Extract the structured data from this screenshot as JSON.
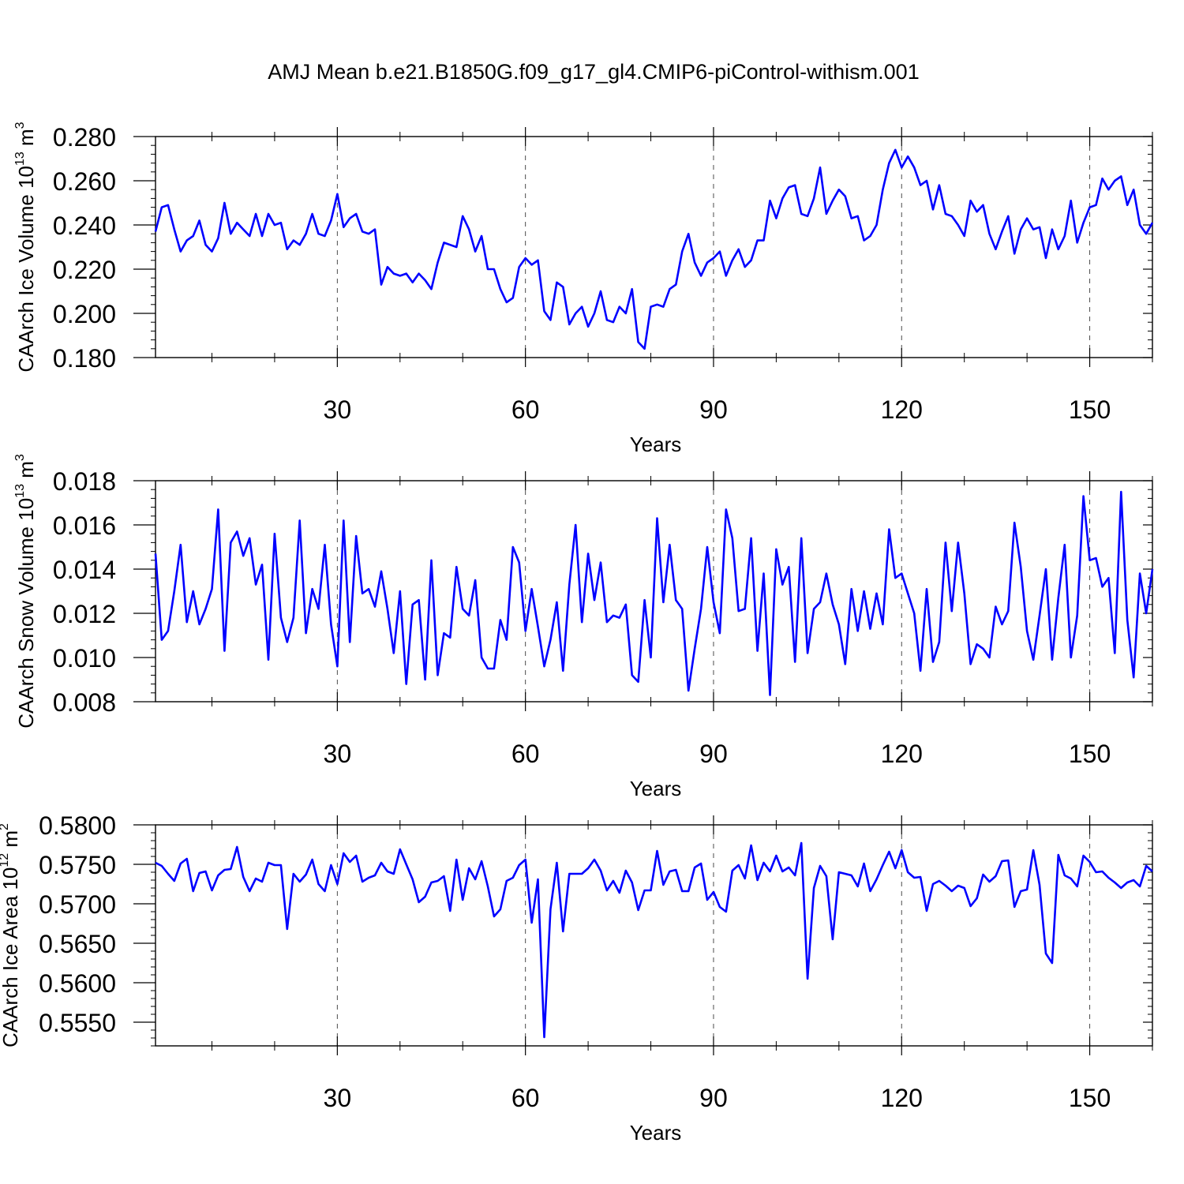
{
  "figure_title": "AMJ Mean b.e21.B1850G.f09_g17_gl4.CMIP6-piControl-withism.001",
  "colors": {
    "line": "#0000ff",
    "axes": "#000000",
    "grid": "#000000",
    "background": "#ffffff"
  },
  "chart_data": [
    {
      "type": "line",
      "name": "caarch-ice-volume",
      "title": "",
      "xlabel": "Years",
      "ylabel": {
        "text": "CAArch Ice Volume 10",
        "exponent": "13",
        "unit": " m",
        "unit_exponent": "3"
      },
      "xlim": [
        1,
        160
      ],
      "ylim": [
        0.18,
        0.28
      ],
      "xticks": [
        30,
        60,
        90,
        120,
        150
      ],
      "xtick_labels": [
        "30",
        "60",
        "90",
        "120",
        "150"
      ],
      "yticks": [
        0.18,
        0.2,
        0.22,
        0.24,
        0.26,
        0.28
      ],
      "ytick_labels": [
        "0.180",
        "0.200",
        "0.220",
        "0.240",
        "0.260",
        "0.280"
      ],
      "x_minor_step": 10,
      "y_minor_step": 0.004,
      "vertical_grid": [
        30,
        60,
        90,
        120,
        150
      ],
      "series": [
        {
          "name": "CAArch Ice Volume",
          "x_start": 1,
          "values": [
            0.237,
            0.248,
            0.249,
            0.238,
            0.228,
            0.233,
            0.235,
            0.242,
            0.231,
            0.228,
            0.234,
            0.25,
            0.236,
            0.241,
            0.238,
            0.235,
            0.245,
            0.235,
            0.245,
            0.24,
            0.241,
            0.229,
            0.233,
            0.231,
            0.236,
            0.245,
            0.236,
            0.235,
            0.242,
            0.254,
            0.239,
            0.243,
            0.245,
            0.237,
            0.236,
            0.238,
            0.213,
            0.221,
            0.218,
            0.217,
            0.218,
            0.214,
            0.218,
            0.215,
            0.211,
            0.223,
            0.232,
            0.231,
            0.23,
            0.244,
            0.238,
            0.228,
            0.235,
            0.22,
            0.22,
            0.211,
            0.205,
            0.207,
            0.221,
            0.225,
            0.222,
            0.224,
            0.201,
            0.197,
            0.214,
            0.212,
            0.195,
            0.2,
            0.203,
            0.194,
            0.2,
            0.21,
            0.197,
            0.196,
            0.203,
            0.2,
            0.211,
            0.187,
            0.184,
            0.203,
            0.204,
            0.203,
            0.211,
            0.213,
            0.228,
            0.236,
            0.223,
            0.217,
            0.223,
            0.225,
            0.228,
            0.217,
            0.224,
            0.229,
            0.221,
            0.224,
            0.233,
            0.233,
            0.251,
            0.243,
            0.252,
            0.257,
            0.258,
            0.245,
            0.244,
            0.252,
            0.266,
            0.245,
            0.251,
            0.256,
            0.253,
            0.243,
            0.244,
            0.233,
            0.235,
            0.24,
            0.256,
            0.268,
            0.274,
            0.266,
            0.271,
            0.266,
            0.258,
            0.26,
            0.247,
            0.258,
            0.245,
            0.244,
            0.24,
            0.235,
            0.251,
            0.246,
            0.249,
            0.236,
            0.229,
            0.237,
            0.244,
            0.227,
            0.238,
            0.243,
            0.238,
            0.239,
            0.225,
            0.238,
            0.229,
            0.235,
            0.251,
            0.232,
            0.241,
            0.248,
            0.249,
            0.261,
            0.256,
            0.26,
            0.262,
            0.249,
            0.256,
            0.24,
            0.236,
            0.241
          ]
        }
      ]
    },
    {
      "type": "line",
      "name": "caarch-snow-volume",
      "title": "",
      "xlabel": "Years",
      "ylabel": {
        "text": "CAArch Snow Volume 10",
        "exponent": "13",
        "unit": " m",
        "unit_exponent": "3"
      },
      "xlim": [
        1,
        160
      ],
      "ylim": [
        0.008,
        0.018
      ],
      "xticks": [
        30,
        60,
        90,
        120,
        150
      ],
      "xtick_labels": [
        "30",
        "60",
        "90",
        "120",
        "150"
      ],
      "yticks": [
        0.008,
        0.01,
        0.012,
        0.014,
        0.016,
        0.018
      ],
      "ytick_labels": [
        "0.008",
        "0.010",
        "0.012",
        "0.014",
        "0.016",
        "0.018"
      ],
      "x_minor_step": 10,
      "y_minor_step": 0.0004,
      "vertical_grid": [
        30,
        60,
        90,
        120,
        150
      ],
      "series": [
        {
          "name": "CAArch Snow Volume",
          "x_start": 1,
          "values": [
            0.0147,
            0.0108,
            0.0112,
            0.013,
            0.0151,
            0.0116,
            0.013,
            0.0115,
            0.0122,
            0.0131,
            0.0167,
            0.0103,
            0.0152,
            0.0157,
            0.0146,
            0.0154,
            0.0133,
            0.0142,
            0.0099,
            0.0156,
            0.0118,
            0.0107,
            0.0118,
            0.0162,
            0.0111,
            0.0131,
            0.0122,
            0.0151,
            0.0115,
            0.0096,
            0.0162,
            0.0107,
            0.0155,
            0.0129,
            0.0131,
            0.0123,
            0.0139,
            0.0122,
            0.0102,
            0.013,
            0.0088,
            0.0124,
            0.0126,
            0.009,
            0.0144,
            0.0092,
            0.0111,
            0.0109,
            0.0141,
            0.0122,
            0.0119,
            0.0135,
            0.01,
            0.0095,
            0.0095,
            0.0117,
            0.0108,
            0.015,
            0.0143,
            0.0112,
            0.0131,
            0.0114,
            0.0096,
            0.0108,
            0.0125,
            0.0094,
            0.0133,
            0.016,
            0.0116,
            0.0147,
            0.0126,
            0.0143,
            0.0116,
            0.0119,
            0.0118,
            0.0124,
            0.0092,
            0.0089,
            0.0126,
            0.01,
            0.0163,
            0.0125,
            0.0151,
            0.0126,
            0.0122,
            0.0085,
            0.0104,
            0.0122,
            0.015,
            0.0125,
            0.0111,
            0.0167,
            0.0154,
            0.0121,
            0.0122,
            0.0154,
            0.0103,
            0.0138,
            0.0083,
            0.0149,
            0.0133,
            0.0141,
            0.0098,
            0.0154,
            0.0102,
            0.0122,
            0.0125,
            0.0138,
            0.0124,
            0.0115,
            0.0097,
            0.0131,
            0.0112,
            0.013,
            0.0113,
            0.0129,
            0.0115,
            0.0158,
            0.0136,
            0.0138,
            0.0129,
            0.012,
            0.0094,
            0.0131,
            0.0098,
            0.0107,
            0.0152,
            0.0121,
            0.0152,
            0.0129,
            0.0097,
            0.0106,
            0.0104,
            0.01,
            0.0123,
            0.0115,
            0.0121,
            0.0161,
            0.0141,
            0.0112,
            0.0099,
            0.0119,
            0.014,
            0.0099,
            0.0127,
            0.0151,
            0.01,
            0.0119,
            0.0173,
            0.0144,
            0.0145,
            0.0132,
            0.0136,
            0.0102,
            0.0175,
            0.0117,
            0.0091,
            0.0138,
            0.012,
            0.014
          ]
        }
      ]
    },
    {
      "type": "line",
      "name": "caarch-ice-area",
      "title": "",
      "xlabel": "Years",
      "ylabel": {
        "text": "CAArch Ice Area 10",
        "exponent": "12",
        "unit": " m",
        "unit_exponent": "2"
      },
      "xlim": [
        1,
        160
      ],
      "ylim": [
        0.552,
        0.58
      ],
      "xticks": [
        30,
        60,
        90,
        120,
        150
      ],
      "xtick_labels": [
        "30",
        "60",
        "90",
        "120",
        "150"
      ],
      "yticks": [
        0.555,
        0.56,
        0.565,
        0.57,
        0.575,
        0.58
      ],
      "ytick_labels": [
        "0.5550",
        "0.5600",
        "0.5650",
        "0.5700",
        "0.5750",
        "0.5800"
      ],
      "x_minor_step": 10,
      "y_minor_step": 0.001,
      "vertical_grid": [
        30,
        60,
        90,
        120,
        150
      ],
      "series": [
        {
          "name": "CAArch Ice Area",
          "x_start": 1,
          "values": [
            0.5752,
            0.5748,
            0.5738,
            0.5729,
            0.5751,
            0.5757,
            0.5716,
            0.5739,
            0.5741,
            0.5717,
            0.5736,
            0.5743,
            0.5744,
            0.5772,
            0.5734,
            0.5716,
            0.5732,
            0.5728,
            0.5752,
            0.5749,
            0.5749,
            0.5668,
            0.5738,
            0.5728,
            0.5737,
            0.5756,
            0.5725,
            0.5716,
            0.5749,
            0.5725,
            0.5764,
            0.5753,
            0.5761,
            0.5728,
            0.5733,
            0.5736,
            0.5752,
            0.5741,
            0.5738,
            0.5769,
            0.575,
            0.5731,
            0.5702,
            0.5709,
            0.5727,
            0.5729,
            0.5735,
            0.5691,
            0.5756,
            0.5705,
            0.5745,
            0.5731,
            0.5754,
            0.5722,
            0.5684,
            0.5693,
            0.5729,
            0.5733,
            0.5749,
            0.5756,
            0.5676,
            0.5731,
            0.5531,
            0.5693,
            0.5752,
            0.5665,
            0.5738,
            0.5738,
            0.5738,
            0.5745,
            0.5756,
            0.5742,
            0.5717,
            0.5729,
            0.5714,
            0.5742,
            0.5727,
            0.5692,
            0.5717,
            0.5717,
            0.5767,
            0.5724,
            0.5741,
            0.5743,
            0.5716,
            0.5716,
            0.5746,
            0.5751,
            0.5705,
            0.5715,
            0.5696,
            0.569,
            0.5742,
            0.5749,
            0.5732,
            0.5774,
            0.573,
            0.5752,
            0.5741,
            0.5761,
            0.5741,
            0.5746,
            0.5736,
            0.5777,
            0.5605,
            0.572,
            0.5748,
            0.5735,
            0.5655,
            0.574,
            0.5738,
            0.5736,
            0.5722,
            0.5751,
            0.5716,
            0.5731,
            0.5749,
            0.5766,
            0.5745,
            0.5768,
            0.574,
            0.5733,
            0.5734,
            0.5691,
            0.5725,
            0.5729,
            0.5723,
            0.5716,
            0.5723,
            0.572,
            0.5697,
            0.5707,
            0.5737,
            0.5728,
            0.5735,
            0.5754,
            0.5755,
            0.5696,
            0.5716,
            0.5718,
            0.5768,
            0.5724,
            0.5637,
            0.5625,
            0.5762,
            0.5736,
            0.5732,
            0.5722,
            0.5761,
            0.5753,
            0.574,
            0.5741,
            0.5733,
            0.5727,
            0.572,
            0.5727,
            0.573,
            0.5722,
            0.5748,
            0.5741
          ]
        }
      ]
    }
  ]
}
